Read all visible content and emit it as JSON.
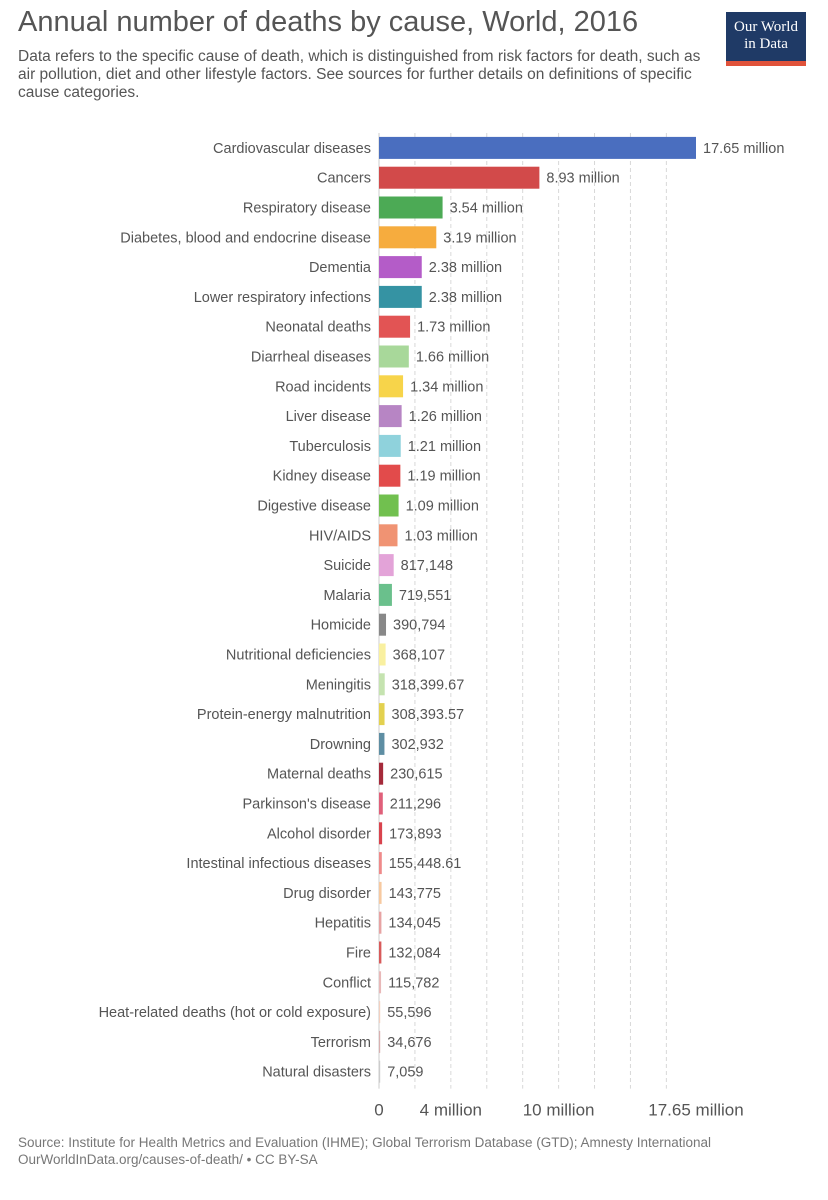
{
  "title": "Annual number of deaths by cause, World, 2016",
  "subtitle": "Data refers to the specific cause of death, which is distinguished from risk factors for death, such as air pollution, diet and other lifestyle factors. See sources for further details on definitions of specific cause categories.",
  "logo": {
    "line1": "Our World",
    "line2": "in Data",
    "bg": "#1f3a66",
    "stripe": "#e0523a"
  },
  "footer": {
    "source": "Source: Institute for Health Metrics and Evaluation (IHME); Global Terrorism Database (GTD); Amnesty International",
    "link": "OurWorldInData.org/causes-of-death/ • CC BY-SA"
  },
  "chart_data": {
    "type": "bar",
    "orientation": "horizontal",
    "title": "Annual number of deaths by cause, World, 2016",
    "xlim": [
      0,
      17650000
    ],
    "x_ticks": [
      {
        "value": 0,
        "label": "0"
      },
      {
        "value": 4000000,
        "label": "4 million"
      },
      {
        "value": 10000000,
        "label": "10 million"
      },
      {
        "value": 17650000,
        "label": "17.65 million"
      }
    ],
    "grid": true,
    "bars": [
      {
        "category": "Cardiovascular diseases",
        "value": 17650000,
        "label": "17.65 million",
        "color": "#4a6ebf"
      },
      {
        "category": "Cancers",
        "value": 8930000,
        "label": "8.93 million",
        "color": "#d24a4a"
      },
      {
        "category": "Respiratory disease",
        "value": 3540000,
        "label": "3.54 million",
        "color": "#4caa55"
      },
      {
        "category": "Diabetes, blood and endocrine disease",
        "value": 3190000,
        "label": "3.19 million",
        "color": "#f6ac3e"
      },
      {
        "category": "Dementia",
        "value": 2380000,
        "label": "2.38 million",
        "color": "#b45cc8"
      },
      {
        "category": "Lower respiratory infections",
        "value": 2380000,
        "label": "2.38 million",
        "color": "#3593a3"
      },
      {
        "category": "Neonatal deaths",
        "value": 1730000,
        "label": "1.73 million",
        "color": "#e25454"
      },
      {
        "category": "Diarrheal diseases",
        "value": 1660000,
        "label": "1.66 million",
        "color": "#a8d89a"
      },
      {
        "category": "Road incidents",
        "value": 1340000,
        "label": "1.34 million",
        "color": "#f7d44a"
      },
      {
        "category": "Liver disease",
        "value": 1260000,
        "label": "1.26 million",
        "color": "#b785c4"
      },
      {
        "category": "Tuberculosis",
        "value": 1210000,
        "label": "1.21 million",
        "color": "#8fd2dc"
      },
      {
        "category": "Kidney disease",
        "value": 1190000,
        "label": "1.19 million",
        "color": "#e24b4b"
      },
      {
        "category": "Digestive disease",
        "value": 1090000,
        "label": "1.09 million",
        "color": "#71c04f"
      },
      {
        "category": "HIV/AIDS",
        "value": 1030000,
        "label": "1.03 million",
        "color": "#f09373"
      },
      {
        "category": "Suicide",
        "value": 817148,
        "label": "817,148",
        "color": "#e3a3d8"
      },
      {
        "category": "Malaria",
        "value": 719551,
        "label": "719,551",
        "color": "#6ac08c"
      },
      {
        "category": "Homicide",
        "value": 390794,
        "label": "390,794",
        "color": "#888888"
      },
      {
        "category": "Nutritional deficiencies",
        "value": 368107,
        "label": "368,107",
        "color": "#f9f0a0"
      },
      {
        "category": "Meningitis",
        "value": 318399.67,
        "label": "318,399.67",
        "color": "#c5e3b0"
      },
      {
        "category": "Protein-energy malnutrition",
        "value": 308393.57,
        "label": "308,393.57",
        "color": "#e3d14f"
      },
      {
        "category": "Drowning",
        "value": 302932,
        "label": "302,932",
        "color": "#5e8ea3"
      },
      {
        "category": "Maternal deaths",
        "value": 230615,
        "label": "230,615",
        "color": "#a52a3a"
      },
      {
        "category": "Parkinson's disease",
        "value": 211296,
        "label": "211,296",
        "color": "#e0607a"
      },
      {
        "category": "Alcohol disorder",
        "value": 173893,
        "label": "173,893",
        "color": "#d9434d"
      },
      {
        "category": "Intestinal infectious diseases",
        "value": 155448.61,
        "label": "155,448.61",
        "color": "#ef8a8a"
      },
      {
        "category": "Drug disorder",
        "value": 143775,
        "label": "143,775",
        "color": "#f7c9a0"
      },
      {
        "category": "Hepatitis",
        "value": 134045,
        "label": "134,045",
        "color": "#e7a3a3"
      },
      {
        "category": "Fire",
        "value": 132084,
        "label": "132,084",
        "color": "#d85a5a"
      },
      {
        "category": "Conflict",
        "value": 115782,
        "label": "115,782",
        "color": "#e8b8b8"
      },
      {
        "category": "Heat-related deaths (hot or cold exposure)",
        "value": 55596,
        "label": "55,596",
        "color": "#f3d0c0"
      },
      {
        "category": "Terrorism",
        "value": 34676,
        "label": "34,676",
        "color": "#d8b0b0"
      },
      {
        "category": "Natural disasters",
        "value": 7059,
        "label": "7,059",
        "color": "#cccccc"
      }
    ]
  }
}
